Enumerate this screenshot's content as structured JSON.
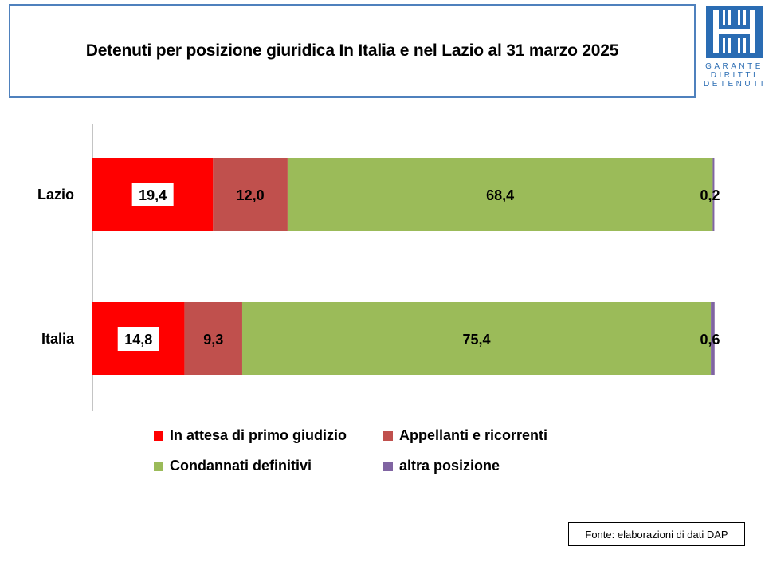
{
  "header": {
    "title": "Detenuti per posizione giuridica In Italia e nel Lazio al 31 marzo 2025",
    "logo_lines": [
      "GARANTE",
      "DIRITTI",
      "DETENUTI"
    ],
    "logo_color": "#2a6cb3"
  },
  "chart_data": {
    "type": "bar",
    "orientation": "horizontal",
    "stacked": true,
    "percent_stacked": true,
    "categories": [
      "Lazio",
      "Italia"
    ],
    "series": [
      {
        "name": "In attesa di primo giudizio",
        "color": "#ff0000",
        "values": [
          19.4,
          14.8
        ],
        "labels": [
          "19,4",
          "14,8"
        ],
        "label_boxed": true
      },
      {
        "name": "Appellanti e ricorrenti",
        "color": "#c0504d",
        "values": [
          12.0,
          9.3
        ],
        "labels": [
          "12,0",
          "9,3"
        ],
        "label_boxed": false
      },
      {
        "name": "Condannati definitivi",
        "color": "#9bbb59",
        "values": [
          68.4,
          75.4
        ],
        "labels": [
          "68,4",
          "75,4"
        ],
        "label_boxed": false
      },
      {
        "name": "altra posizione",
        "color": "#8064a2",
        "values": [
          0.2,
          0.6
        ],
        "labels": [
          "0,2",
          "0,6"
        ],
        "label_boxed": false
      }
    ],
    "xlim": [
      0,
      100
    ],
    "grid": false,
    "legend_position": "bottom"
  },
  "footer": {
    "source": "Fonte: elaborazioni di dati DAP"
  }
}
